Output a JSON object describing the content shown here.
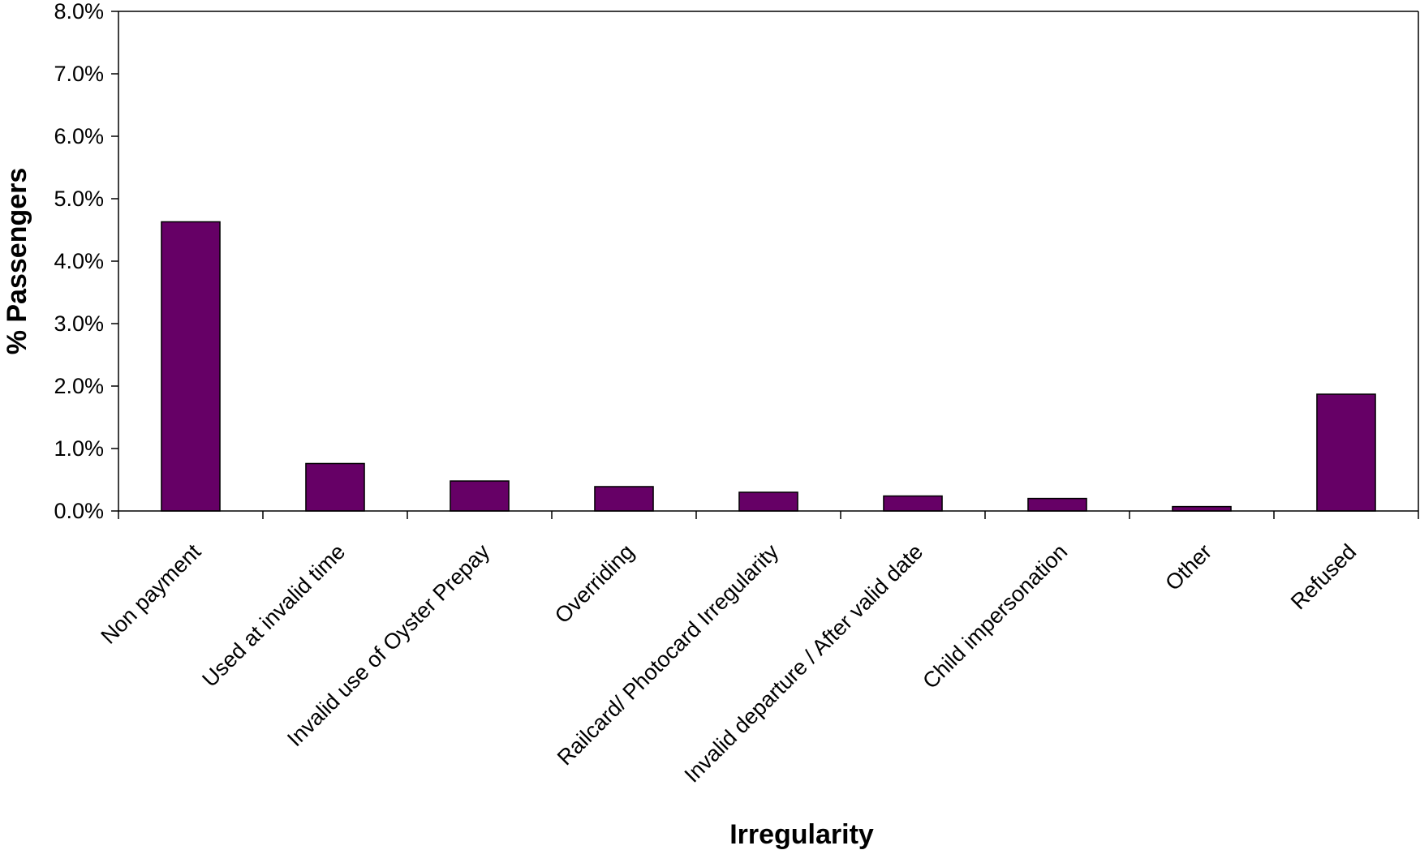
{
  "chart_data": {
    "type": "bar",
    "title": "",
    "xlabel": "Irregularity",
    "ylabel": "% Passengers",
    "ylim": [
      0,
      8
    ],
    "y_ticks": [
      0,
      1,
      2,
      3,
      4,
      5,
      6,
      7,
      8
    ],
    "y_tick_format": "percent_1dp",
    "grid": false,
    "legend": "none",
    "bar_color": "#660066",
    "categories": [
      "Non payment",
      "Used at invalid time",
      "Invalid use of Oyster Prepay",
      "Overriding",
      "Railcard/ Photocard Irregularity",
      "Invalid departure / After valid date",
      "Child impersonation",
      "Other",
      "Refused"
    ],
    "values": [
      4.63,
      0.76,
      0.48,
      0.39,
      0.3,
      0.24,
      0.2,
      0.07,
      1.87
    ]
  }
}
